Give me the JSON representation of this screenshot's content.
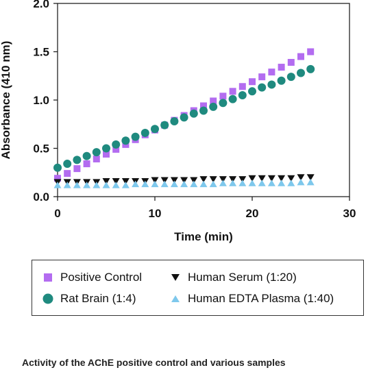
{
  "chart_data": {
    "type": "scatter",
    "title": "",
    "xlabel": "Time (min)",
    "ylabel": "Absorbance (410 nm)",
    "xlim": [
      0,
      30
    ],
    "ylim": [
      0.0,
      2.0
    ],
    "x_ticks": [
      "0",
      "10",
      "20",
      "30"
    ],
    "y_ticks": [
      "0.0",
      "0.5",
      "1.0",
      "1.5",
      "2.0"
    ],
    "x_tick_values": [
      0,
      10,
      20,
      30
    ],
    "y_tick_values": [
      0.0,
      0.5,
      1.0,
      1.5,
      2.0
    ],
    "grid": false,
    "legend_position": "bottom",
    "x": [
      0,
      1,
      2,
      3,
      4,
      5,
      6,
      7,
      8,
      9,
      10,
      11,
      12,
      13,
      14,
      15,
      16,
      17,
      18,
      19,
      20,
      21,
      22,
      23,
      24,
      25,
      26
    ],
    "series": [
      {
        "name": "Positive Control",
        "marker": "square",
        "color": "#b36cf0",
        "values": [
          0.19,
          0.24,
          0.29,
          0.34,
          0.39,
          0.44,
          0.49,
          0.54,
          0.59,
          0.64,
          0.69,
          0.74,
          0.79,
          0.84,
          0.89,
          0.94,
          0.99,
          1.04,
          1.09,
          1.14,
          1.19,
          1.24,
          1.29,
          1.34,
          1.39,
          1.45,
          1.5
        ]
      },
      {
        "name": "Rat Brain (1:4)",
        "marker": "circle",
        "color": "#1f8a7f",
        "values": [
          0.3,
          0.34,
          0.38,
          0.42,
          0.46,
          0.5,
          0.54,
          0.58,
          0.62,
          0.66,
          0.7,
          0.74,
          0.78,
          0.82,
          0.86,
          0.89,
          0.93,
          0.97,
          1.01,
          1.05,
          1.09,
          1.13,
          1.16,
          1.2,
          1.24,
          1.28,
          1.32
        ]
      },
      {
        "name": "Human Serum (1:20)",
        "marker": "triangle-down",
        "color": "#111111",
        "values": [
          0.15,
          0.15,
          0.15,
          0.15,
          0.15,
          0.16,
          0.16,
          0.16,
          0.16,
          0.16,
          0.17,
          0.17,
          0.17,
          0.17,
          0.17,
          0.18,
          0.18,
          0.18,
          0.18,
          0.18,
          0.19,
          0.19,
          0.19,
          0.19,
          0.19,
          0.2,
          0.2
        ]
      },
      {
        "name": "Human EDTA Plasma (1:40)",
        "marker": "triangle-up",
        "color": "#7ec8ec",
        "values": [
          0.12,
          0.12,
          0.12,
          0.12,
          0.12,
          0.12,
          0.12,
          0.12,
          0.13,
          0.13,
          0.13,
          0.13,
          0.13,
          0.13,
          0.13,
          0.13,
          0.13,
          0.14,
          0.14,
          0.14,
          0.14,
          0.14,
          0.14,
          0.14,
          0.14,
          0.15,
          0.15
        ]
      }
    ]
  },
  "caption": "Activity of the AChE positive control and various samples"
}
